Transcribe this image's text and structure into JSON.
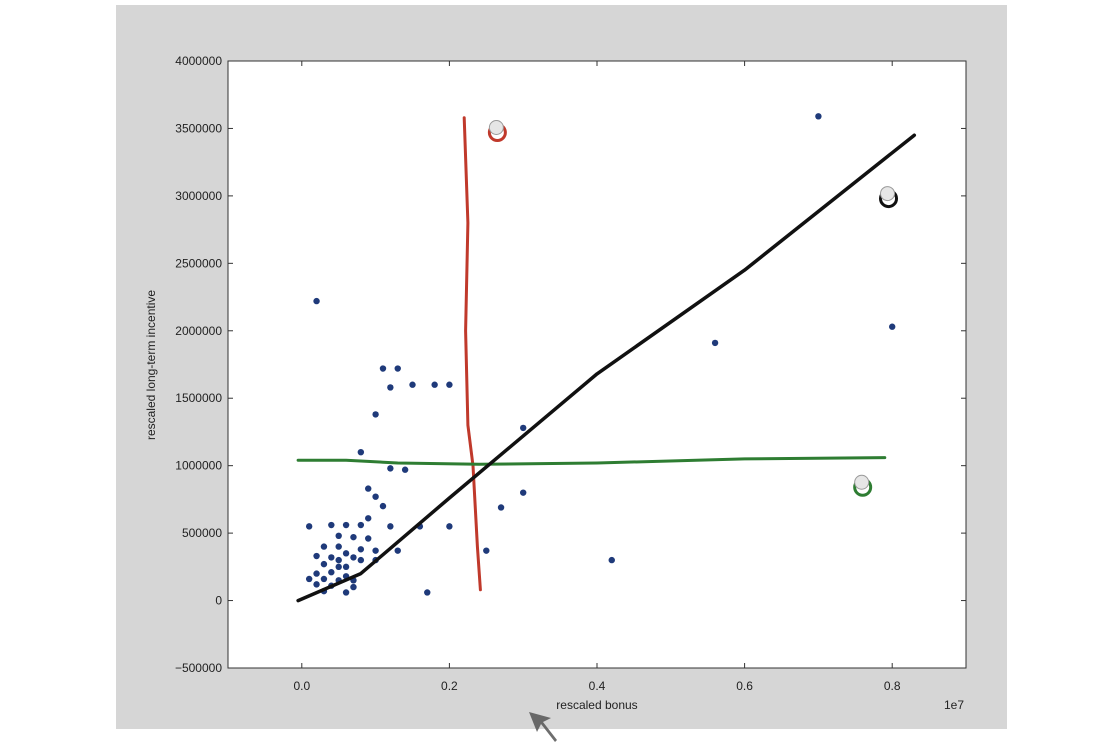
{
  "chart_data": {
    "type": "scatter",
    "xlabel": "rescaled bonus",
    "ylabel": "rescaled long-term incentive",
    "x_scale_label": "1e7",
    "xlim": [
      -0.1,
      0.9
    ],
    "ylim": [
      -500000,
      4000000
    ],
    "x_ticks": [
      0.0,
      0.2,
      0.4,
      0.6,
      0.8
    ],
    "x_tick_labels": [
      "0.0",
      "0.2",
      "0.4",
      "0.6",
      "0.8"
    ],
    "y_ticks": [
      -500000,
      0,
      500000,
      1000000,
      1500000,
      2000000,
      2500000,
      3000000,
      3500000,
      4000000
    ],
    "y_tick_labels": [
      "−500000",
      "0",
      "500000",
      "1000000",
      "1500000",
      "2000000",
      "2500000",
      "3000000",
      "3500000",
      "4000000"
    ],
    "grid": false,
    "colors": {
      "points": "#1f3a7a",
      "vertical_line": "#c0392b",
      "horizontal_line": "#2e7d32",
      "diagonal_line": "#111111",
      "slide_bg": "#d6d6d6"
    },
    "points": [
      [
        0.02,
        2220000
      ],
      [
        0.7,
        3590000
      ],
      [
        0.8,
        2030000
      ],
      [
        0.56,
        1910000
      ],
      [
        0.11,
        1720000
      ],
      [
        0.13,
        1720000
      ],
      [
        0.12,
        1580000
      ],
      [
        0.15,
        1600000
      ],
      [
        0.18,
        1600000
      ],
      [
        0.2,
        1600000
      ],
      [
        0.1,
        1380000
      ],
      [
        0.3,
        1280000
      ],
      [
        0.08,
        1100000
      ],
      [
        0.12,
        980000
      ],
      [
        0.14,
        970000
      ],
      [
        0.09,
        830000
      ],
      [
        0.1,
        770000
      ],
      [
        0.11,
        700000
      ],
      [
        0.3,
        800000
      ],
      [
        0.27,
        690000
      ],
      [
        0.09,
        610000
      ],
      [
        0.01,
        550000
      ],
      [
        0.04,
        560000
      ],
      [
        0.06,
        560000
      ],
      [
        0.08,
        560000
      ],
      [
        0.12,
        550000
      ],
      [
        0.16,
        550000
      ],
      [
        0.2,
        550000
      ],
      [
        0.05,
        480000
      ],
      [
        0.07,
        470000
      ],
      [
        0.09,
        460000
      ],
      [
        0.03,
        400000
      ],
      [
        0.05,
        400000
      ],
      [
        0.06,
        350000
      ],
      [
        0.08,
        380000
      ],
      [
        0.1,
        370000
      ],
      [
        0.13,
        370000
      ],
      [
        0.25,
        370000
      ],
      [
        0.02,
        330000
      ],
      [
        0.04,
        320000
      ],
      [
        0.05,
        300000
      ],
      [
        0.07,
        320000
      ],
      [
        0.08,
        300000
      ],
      [
        0.1,
        300000
      ],
      [
        0.42,
        300000
      ],
      [
        0.03,
        270000
      ],
      [
        0.05,
        250000
      ],
      [
        0.06,
        250000
      ],
      [
        0.02,
        200000
      ],
      [
        0.04,
        210000
      ],
      [
        0.06,
        180000
      ],
      [
        0.01,
        160000
      ],
      [
        0.03,
        160000
      ],
      [
        0.05,
        150000
      ],
      [
        0.07,
        150000
      ],
      [
        0.02,
        120000
      ],
      [
        0.04,
        110000
      ],
      [
        0.07,
        100000
      ],
      [
        0.03,
        70000
      ],
      [
        0.06,
        60000
      ],
      [
        0.17,
        60000
      ]
    ],
    "annotations": {
      "vertical_line": [
        [
          0.22,
          3580000
        ],
        [
          0.225,
          2800000
        ],
        [
          0.222,
          2000000
        ],
        [
          0.225,
          1300000
        ],
        [
          0.232,
          1000000
        ],
        [
          0.238,
          400000
        ],
        [
          0.242,
          80000
        ]
      ],
      "horizontal_line": [
        [
          -0.005,
          1040000
        ],
        [
          0.06,
          1040000
        ],
        [
          0.13,
          1020000
        ],
        [
          0.24,
          1010000
        ],
        [
          0.4,
          1020000
        ],
        [
          0.6,
          1050000
        ],
        [
          0.79,
          1060000
        ]
      ],
      "diagonal_line": [
        [
          -0.005,
          0
        ],
        [
          0.08,
          200000
        ],
        [
          0.2,
          760000
        ],
        [
          0.4,
          1680000
        ],
        [
          0.6,
          2450000
        ],
        [
          0.83,
          3450000
        ]
      ],
      "red_circle": [
        0.265,
        3470000
      ],
      "black_circle": [
        0.795,
        2980000
      ],
      "green_circle": [
        0.76,
        840000
      ]
    }
  }
}
